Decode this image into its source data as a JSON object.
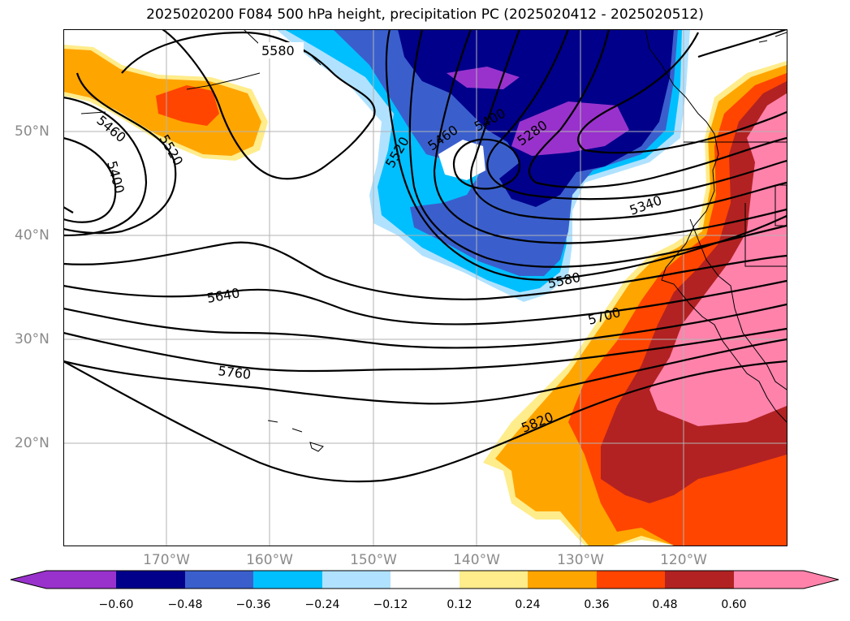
{
  "title": "2025020200 F084 500 hPa height, precipitation PC (2025020412 - 2025020512)",
  "lat_labels": [
    "50°N",
    "40°N",
    "30°N",
    "20°N"
  ],
  "lon_labels": [
    "170°W",
    "160°W",
    "150°W",
    "140°W",
    "130°W",
    "120°W"
  ],
  "contour_labels": [
    "5580",
    "5460",
    "5400",
    "5520",
    "5520",
    "5460",
    "5400",
    "5280",
    "5340",
    "5640",
    "5580",
    "5700",
    "5760",
    "5820"
  ],
  "colorbar": {
    "ticks": [
      "−0.60",
      "−0.48",
      "−0.36",
      "−0.24",
      "−0.12",
      "0.12",
      "0.24",
      "0.36",
      "0.48",
      "0.60"
    ],
    "colors": [
      "#9932cc",
      "#00008b",
      "#3a5fcd",
      "#00bfff",
      "#b0e2ff",
      "#ffffff",
      "#ffec8b",
      "#ffa500",
      "#ff4500",
      "#b22222",
      "#ff82ab"
    ],
    "extend": "both"
  },
  "colors": {
    "contour": "#000000",
    "grid": "#b3b3b3",
    "coast": "#000000"
  }
}
